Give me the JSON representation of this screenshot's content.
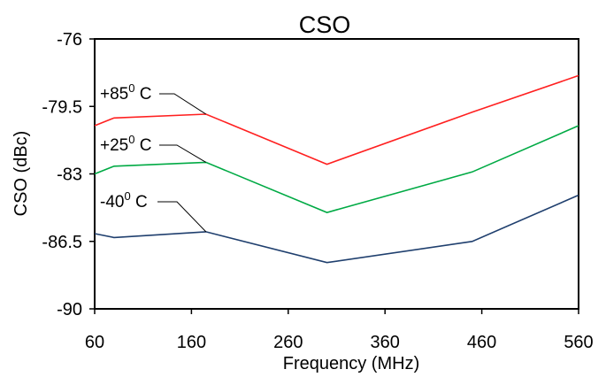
{
  "chart_data": {
    "type": "line",
    "title": "CSO",
    "xlabel": "Frequency (MHz)",
    "ylabel": "CSO (dBc)",
    "xlim": [
      60,
      560
    ],
    "ylim": [
      -90,
      -76
    ],
    "x_ticks": [
      60,
      160,
      260,
      360,
      460,
      560
    ],
    "y_ticks": [
      -76,
      -79.5,
      -83,
      -86.5,
      -90
    ],
    "x_tick_labels": [
      "60",
      "160",
      "260",
      "360",
      "460",
      "560"
    ],
    "y_tick_labels": [
      "-76",
      "-79.5",
      "-83",
      "-86.5",
      "-90"
    ],
    "grid": false,
    "series": [
      {
        "label_main": "+85",
        "label_sup": "0",
        "label_unit": " C",
        "color": "#ff2020",
        "x": [
          60,
          80,
          175,
          300,
          450,
          560
        ],
        "y": [
          -80.5,
          -80.1,
          -79.9,
          -82.5,
          -79.8,
          -77.9
        ]
      },
      {
        "label_main": "+25",
        "label_sup": "0",
        "label_unit": " C",
        "color": "#00aa44",
        "x": [
          60,
          80,
          175,
          300,
          450,
          560
        ],
        "y": [
          -83,
          -82.6,
          -82.4,
          -85,
          -82.9,
          -80.5
        ]
      },
      {
        "label_main": "-40",
        "label_sup": "0",
        "label_unit": " C",
        "color": "#1f3f6e",
        "x": [
          60,
          80,
          175,
          300,
          450,
          560
        ],
        "y": [
          -86.1,
          -86.3,
          -86,
          -87.6,
          -86.5,
          -84.1
        ]
      }
    ]
  }
}
